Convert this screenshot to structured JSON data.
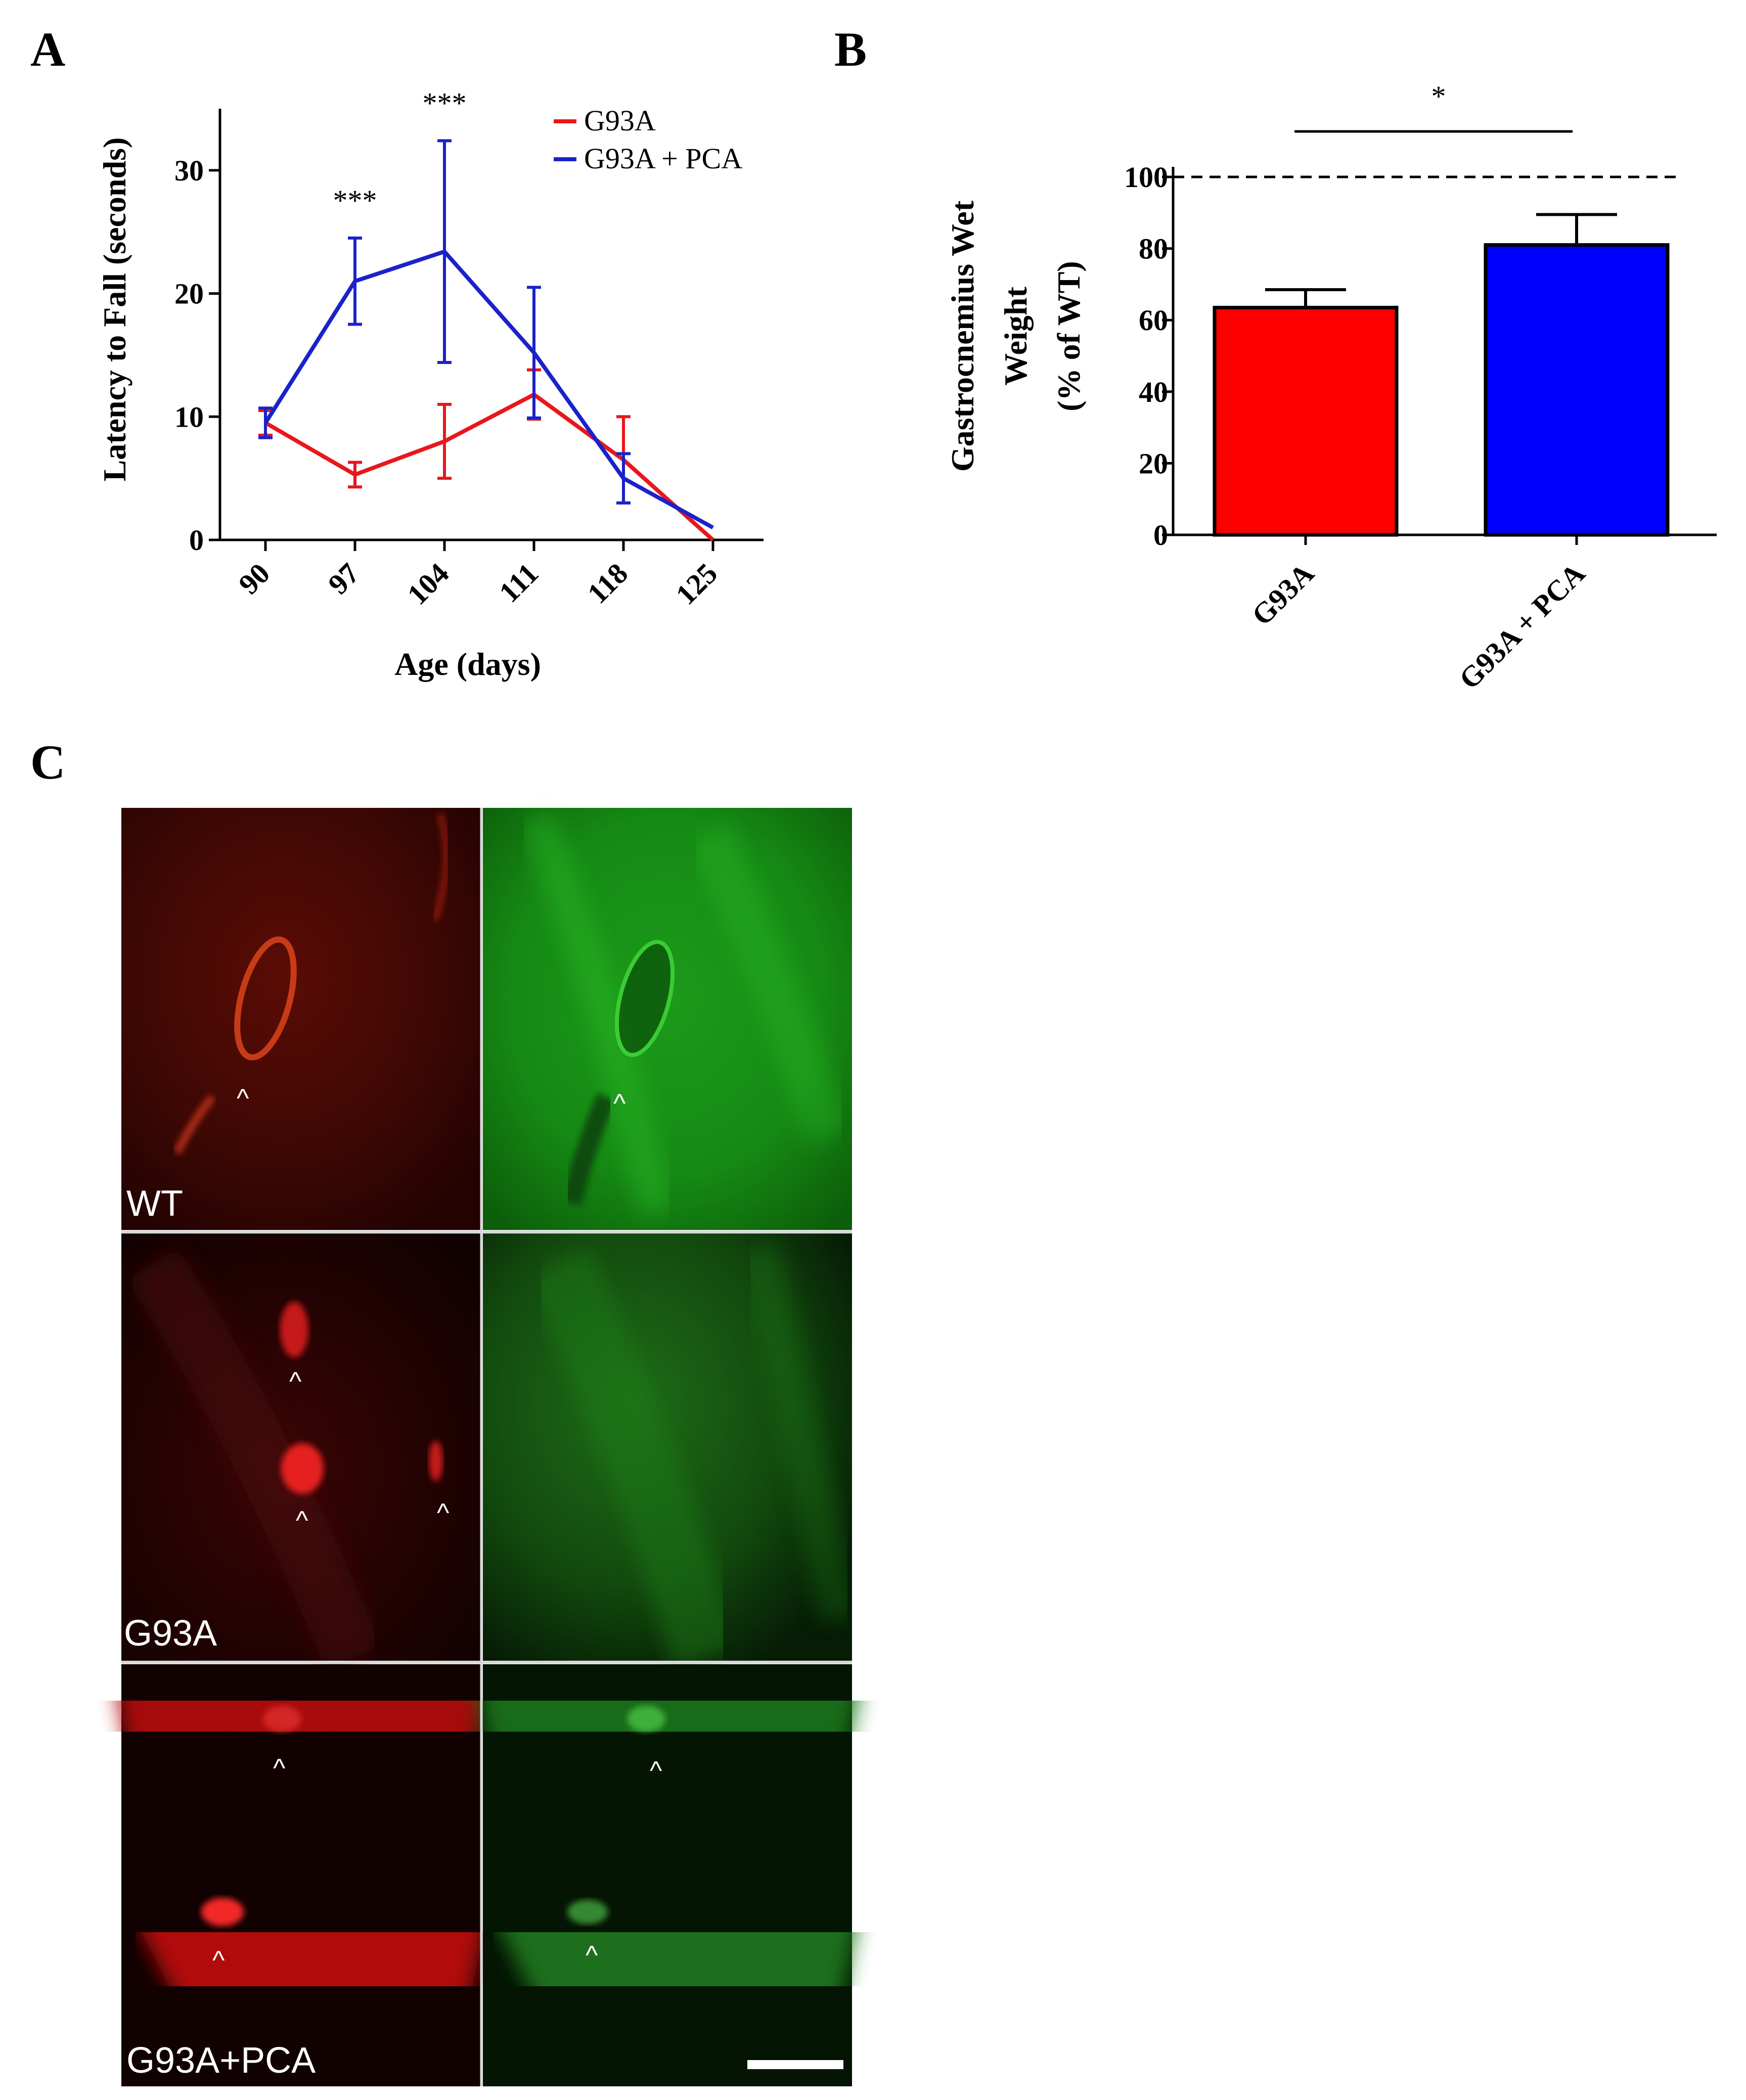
{
  "panels": {
    "a": "A",
    "b": "B",
    "c": "C"
  },
  "chart_data": [
    {
      "type": "line",
      "panel": "A",
      "xlabel": "Age (days)",
      "ylabel": "Latency to Fall (seconds)",
      "x": [
        90,
        97,
        104,
        111,
        118,
        125
      ],
      "xtick_labels": [
        "90",
        "97",
        "104",
        "111",
        "118",
        "125"
      ],
      "ylim": [
        0,
        35
      ],
      "yticks": [
        0,
        10,
        20,
        30
      ],
      "ytick_labels": [
        "0",
        "10",
        "20",
        "30"
      ],
      "series": [
        {
          "name": "G93A",
          "color": "#e8171c",
          "values": [
            9.5,
            5.3,
            8.0,
            11.8,
            6.5,
            0
          ],
          "errors": [
            1.0,
            1.0,
            3.0,
            2.0,
            3.5,
            0
          ]
        },
        {
          "name": "G93A + PCA",
          "color": "#1a22c9",
          "values": [
            9.5,
            21.0,
            23.4,
            15.2,
            5.0,
            1.0
          ],
          "errors": [
            1.2,
            3.5,
            9.0,
            5.3,
            2.0,
            0
          ]
        }
      ],
      "annotations": [
        {
          "x": 97,
          "text": "***"
        },
        {
          "x": 104,
          "text": "***"
        }
      ]
    },
    {
      "type": "bar",
      "panel": "B",
      "categories": [
        "G93A",
        "G93A + PCA"
      ],
      "values": [
        63.5,
        81.0
      ],
      "errors": [
        5.0,
        8.5
      ],
      "colors": [
        "#ff0000",
        "#0000ff"
      ],
      "ylabel_lines": [
        "Gastrocnemius Wet",
        "Weight",
        "(% of WT)"
      ],
      "ylim": [
        0,
        105
      ],
      "yticks": [
        0,
        20,
        40,
        60,
        80,
        100
      ],
      "ytick_labels": [
        "0",
        "20",
        "40",
        "60",
        "80",
        "100"
      ],
      "reference_line": 100,
      "significance": "*"
    }
  ],
  "microscopy": {
    "rows": [
      {
        "label": "WT"
      },
      {
        "label": "G93A"
      },
      {
        "label": "G93A+PCA"
      }
    ],
    "marker": "^"
  }
}
